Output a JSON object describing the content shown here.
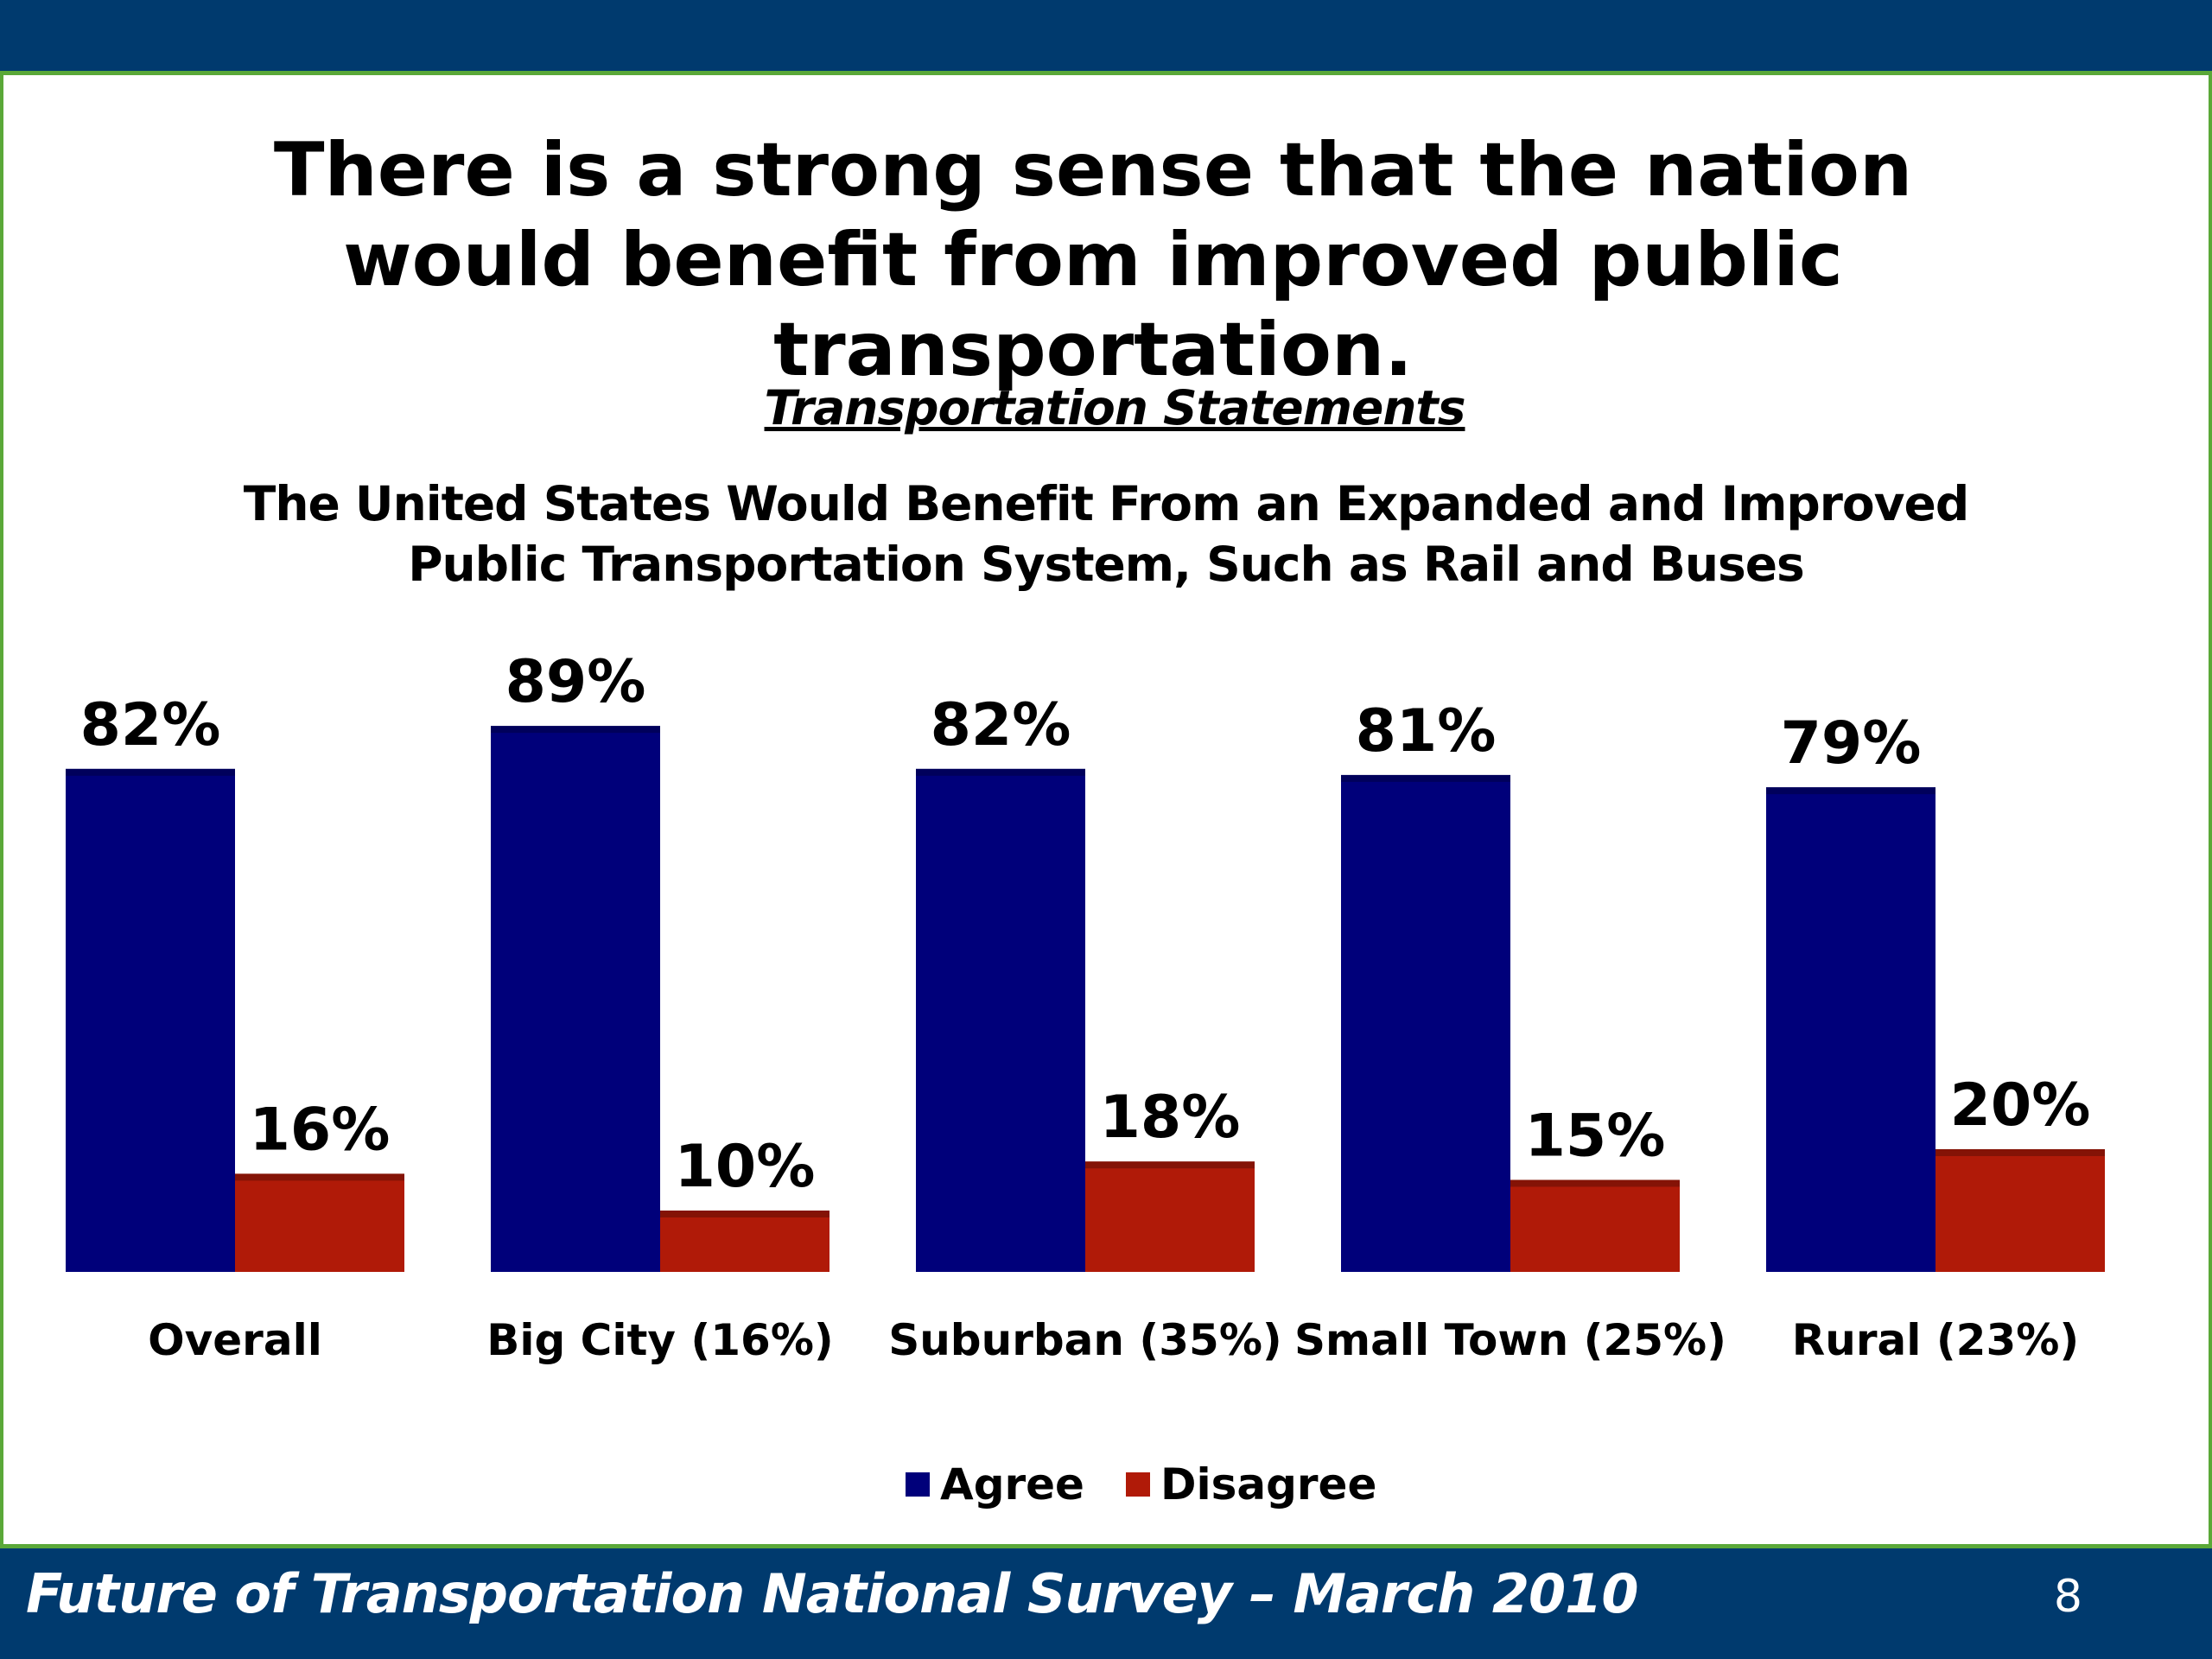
{
  "slide": {
    "title": "There is a strong sense that the nation would benefit from improved public transportation.",
    "section_heading": "Transportation Statements",
    "statement": "The United States Would Benefit From an Expanded and Improved Public Transportation System, Such as Rail and Buses",
    "footer": "Future of Transportation National Survey – March 2010",
    "page_number": "8"
  },
  "colors": {
    "band": "#003a6e",
    "accent_line": "#5aa838",
    "agree": "#00007a",
    "disagree": "#b01a08"
  },
  "chart_data": {
    "type": "bar",
    "title": "",
    "xlabel": "",
    "ylabel": "",
    "ylim": [
      0,
      100
    ],
    "grid": false,
    "legend_position": "bottom",
    "categories": [
      "Overall",
      "Big City (16%)",
      "Suburban (35%)",
      "Small Town (25%)",
      "Rural (23%)"
    ],
    "series": [
      {
        "name": "Agree",
        "values": [
          82,
          89,
          82,
          81,
          79
        ],
        "labels": [
          "82%",
          "89%",
          "82%",
          "81%",
          "79%"
        ]
      },
      {
        "name": "Disagree",
        "values": [
          16,
          10,
          18,
          15,
          20
        ],
        "labels": [
          "16%",
          "10%",
          "18%",
          "15%",
          "20%"
        ]
      }
    ]
  }
}
